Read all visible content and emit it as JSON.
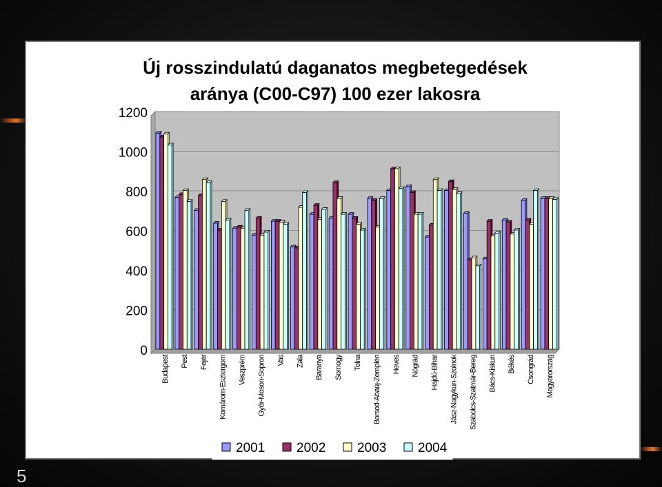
{
  "page_number": "5",
  "chart_data": {
    "type": "bar",
    "title_lines": [
      "Új rosszindulatú daganatos megbetegedések",
      "aránya (C00-C97) 100 ezer lakosra"
    ],
    "xlabel": "",
    "ylabel": "",
    "ylim": [
      0,
      1200
    ],
    "yticks": [
      0,
      200,
      400,
      600,
      800,
      1000,
      1200
    ],
    "grid": true,
    "legend_position": "bottom",
    "categories": [
      "Budapest",
      "Pest",
      "Fejér",
      "Komárom-Esztergom",
      "Veszprém",
      "Győr-Moson-Sopron",
      "Vas",
      "Zala",
      "Baranya",
      "Somogy",
      "Tolna",
      "Borsod-Abaúj-Zemplén",
      "Heves",
      "Nógrád",
      "Hajdú-Bihar",
      "Jász-Nagykun-Szolnok",
      "Szabolcs-Szatmár-Bereg",
      "Bács-Kiskun",
      "Békés",
      "Csongrád",
      "Magyarország"
    ],
    "series": [
      {
        "name": "2001",
        "color": "#9999ff",
        "values": [
          1100,
          775,
          710,
          645,
          620,
          585,
          655,
          525,
          690,
          670,
          690,
          770,
          810,
          830,
          575,
          810,
          695,
          465,
          660,
          760,
          770
        ]
      },
      {
        "name": "2002",
        "color": "#993366",
        "values": [
          1080,
          790,
          785,
          610,
          625,
          670,
          655,
          520,
          735,
          850,
          670,
          760,
          920,
          800,
          635,
          855,
          460,
          655,
          650,
          660,
          770
        ]
      },
      {
        "name": "2003",
        "color": "#ffffcc",
        "values": [
          1095,
          810,
          865,
          755,
          620,
          585,
          650,
          725,
          665,
          770,
          640,
          625,
          920,
          690,
          865,
          815,
          470,
          580,
          590,
          640,
          770
        ]
      },
      {
        "name": "2004",
        "color": "#ccffff",
        "values": [
          1040,
          755,
          850,
          660,
          710,
          600,
          640,
          800,
          715,
          690,
          610,
          770,
          820,
          690,
          810,
          795,
          430,
          595,
          610,
          810,
          765
        ]
      }
    ]
  }
}
